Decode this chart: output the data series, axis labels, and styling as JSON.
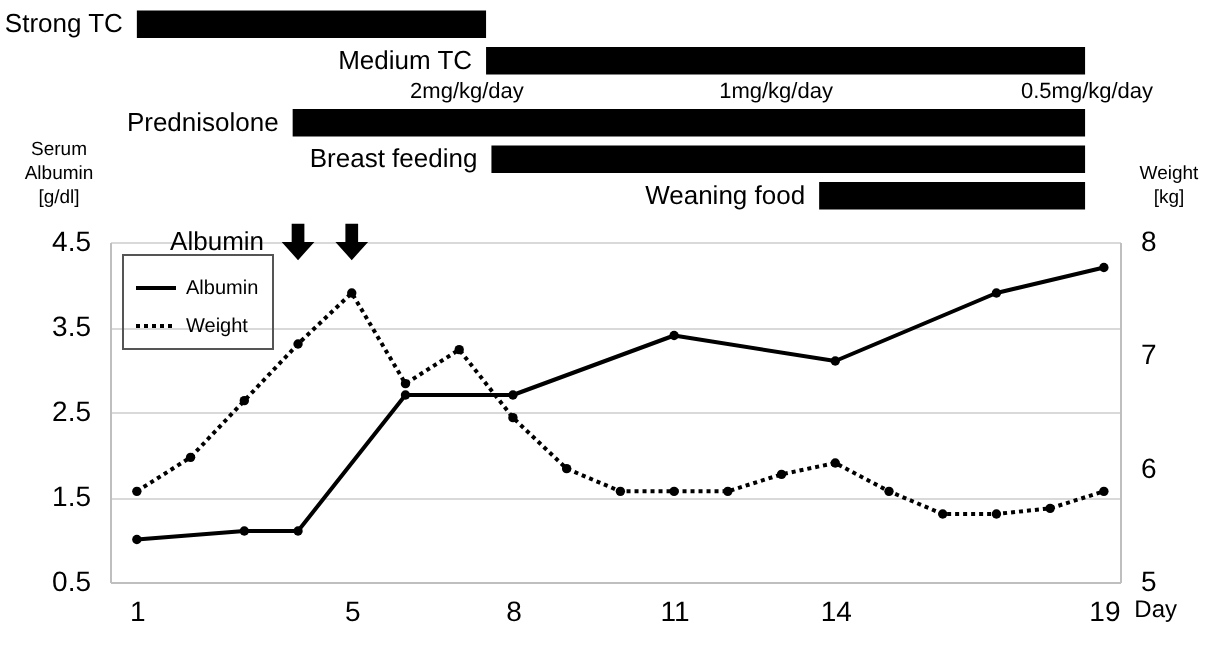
{
  "chart_data": [
    {
      "type": "bar",
      "orientation": "horizontal",
      "tick_labels": false,
      "categories": [
        "Strong TC",
        "Medium TC",
        "Prednisolone",
        "Breast feeding",
        "Weaning food"
      ],
      "base": [
        1,
        7.5,
        3.9,
        7.6,
        13.7
      ],
      "values": [
        6.5,
        11.15,
        14.75,
        11.05,
        4.95
      ],
      "color": "#000000",
      "annotations": [
        "2mg/kg/day",
        "1mg/kg/day",
        "0.5mg/kg/day"
      ],
      "xlim": [
        0.5,
        19.3
      ],
      "xticks": [
        1,
        5,
        8,
        11,
        14,
        19
      ]
    },
    {
      "type": "line",
      "xlabel": "Day",
      "ylabel": "Serum Albumin [g/dl]",
      "y2label": "Weight [kg]",
      "x": [
        1,
        2,
        3,
        4,
        5,
        6,
        7,
        8,
        9,
        10,
        11,
        12,
        13,
        14,
        15,
        16,
        17,
        18,
        19
      ],
      "series": [
        {
          "name": "Albumin",
          "color": "#000000",
          "line_style": "solid",
          "marker": "circle",
          "x": [
            1,
            3,
            4,
            6,
            8,
            11,
            14,
            17,
            19
          ],
          "values": [
            1.0,
            1.1,
            1.1,
            2.7,
            2.7,
            3.4,
            3.1,
            3.9,
            4.2
          ]
        },
        {
          "name": "Weight",
          "color": "#000000",
          "line_style": "dotted",
          "marker": "circle",
          "axis": "y2",
          "values": [
            5.8,
            6.1,
            6.6,
            7.1,
            7.55,
            6.75,
            7.05,
            6.45,
            6.0,
            5.8,
            5.8,
            5.8,
            5.95,
            6.05,
            5.8,
            5.6,
            5.6,
            5.65,
            5.8
          ]
        },
        {
          "type": "scatter",
          "color": "#000000",
          "x": [
            4,
            5
          ],
          "values": [
            4.5,
            4.5
          ]
        }
      ],
      "annotations": [
        "Albumin"
      ],
      "xlim": [
        0.5,
        19.3
      ],
      "xticks": [
        1,
        5,
        8,
        11,
        14,
        19
      ],
      "ylim": [
        0.5,
        4.5
      ],
      "yticks": [
        0.5,
        1.5,
        2.5,
        3.5,
        4.5
      ],
      "y2lim": [
        5,
        8
      ],
      "y2ticks": [
        5,
        6,
        7,
        8
      ],
      "grid": "y",
      "legend": "top left"
    }
  ]
}
